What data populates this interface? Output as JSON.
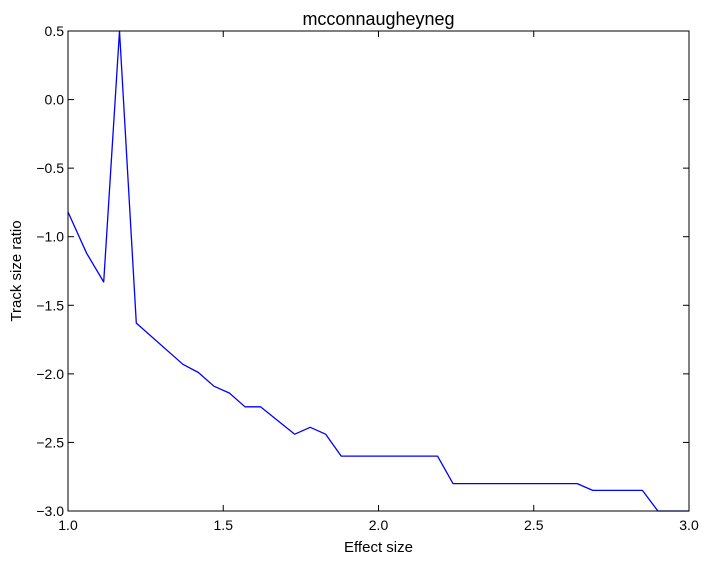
{
  "chart_data": {
    "type": "line",
    "title": "mcconnaugheyneg",
    "xlabel": "Effect size",
    "ylabel": "Track size ratio",
    "xlim": [
      1.0,
      3.0
    ],
    "ylim": [
      -3.0,
      0.5
    ],
    "grid": false,
    "xticks": [
      1.0,
      1.5,
      2.0,
      2.5,
      3.0
    ],
    "xtick_labels": [
      "1.0",
      "1.5",
      "2.0",
      "2.5",
      "3.0"
    ],
    "yticks": [
      0.5,
      0.0,
      -0.5,
      -1.0,
      -1.5,
      -2.0,
      -2.5,
      -3.0
    ],
    "ytick_labels": [
      "0.5",
      "0.0",
      "−0.5",
      "−1.0",
      "−1.5",
      "−2.0",
      "−2.5",
      "−3.0"
    ],
    "series": [
      {
        "color": "#0000ff",
        "x": [
          1.0,
          1.06,
          1.115,
          1.166,
          1.22,
          1.37,
          1.42,
          1.47,
          1.52,
          1.57,
          1.62,
          1.73,
          1.78,
          1.83,
          1.88,
          2.19,
          2.24,
          2.64,
          2.69,
          2.85,
          2.9,
          3.0
        ],
        "y": [
          -0.82,
          -1.12,
          -1.33,
          0.5,
          -1.63,
          -1.93,
          -1.99,
          -2.09,
          -2.14,
          -2.24,
          -2.24,
          -2.44,
          -2.39,
          -2.44,
          -2.6,
          -2.6,
          -2.8,
          -2.8,
          -2.85,
          -2.85,
          -3.0,
          -3.0
        ]
      }
    ]
  }
}
